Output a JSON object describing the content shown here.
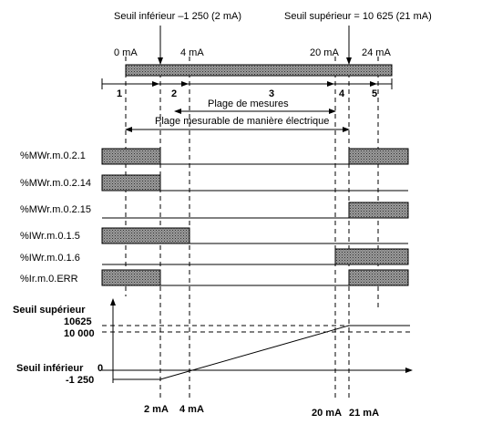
{
  "annotations": {
    "lower_threshold": "Seuil inférieur –1 250 (2 mA)",
    "upper_threshold": "Seuil supérieur = 10 625 (21 mA)"
  },
  "scale": [
    "0 mA",
    "4 mA",
    "20 mA",
    "24 mA"
  ],
  "zones": [
    "1",
    "2",
    "3",
    "4",
    "5"
  ],
  "ranges": {
    "measure": "Plage de mesures",
    "electrical": "Plage mesurable de manière électrique"
  },
  "signals": [
    "%MWr.m.0.2.1",
    "%MWr.m.0.2.14",
    "%MWr.m.0.2.15",
    "%IWr.m.0.1.5",
    "%IWr.m.0.1.6",
    "%Ir.m.0.ERR"
  ],
  "graph": {
    "upper_label": "Seuil supérieur",
    "lower_label": "Seuil inférieur",
    "y_labels": [
      "10625",
      "10 000",
      "0",
      "-1 250"
    ],
    "x_labels": [
      "2 mA",
      "4 mA",
      "20 mA",
      "21 mA"
    ]
  }
}
